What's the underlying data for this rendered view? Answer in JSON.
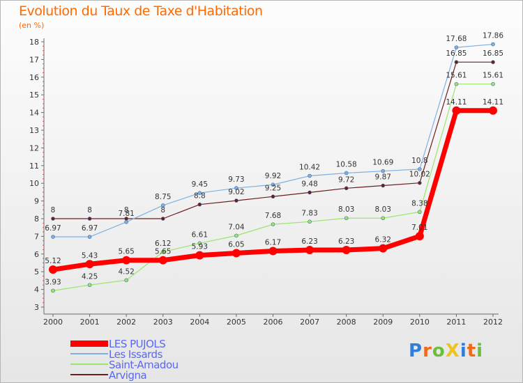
{
  "title": "Evolution du Taux de Taxe d'Habitation",
  "subtitle": "(en %)",
  "brand": {
    "text": "ProXiti",
    "colors": [
      "#2f7fd8",
      "#f06a1b",
      "#6cbf3a",
      "#f0c419",
      "#2f7fd8",
      "#f06a1b",
      "#6cbf3a"
    ]
  },
  "chart_data": {
    "type": "line",
    "x": [
      "2000",
      "2001",
      "2002",
      "2003",
      "2004",
      "2005",
      "2006",
      "2007",
      "2008",
      "2009",
      "2010",
      "2011",
      "2012"
    ],
    "ylim": [
      3,
      18
    ],
    "yticks": [
      "3",
      "4",
      "5",
      "6",
      "7",
      "8",
      "9",
      "10",
      "11",
      "12",
      "13",
      "14",
      "15",
      "16",
      "17",
      "18"
    ],
    "grid": false,
    "legend_position": "bottom-left",
    "series": [
      {
        "name": "Arvigna",
        "color": "#6b1e1e",
        "width": 1.2,
        "marker": 5,
        "values": [
          8,
          8,
          8,
          8,
          8.8,
          9.02,
          9.25,
          9.48,
          9.72,
          9.87,
          10.02,
          16.85,
          16.85
        ],
        "labels": [
          "8",
          "8",
          "8",
          "8",
          "8.8",
          "9.02",
          "9.25",
          "9.48",
          "9.72",
          "9.87",
          "10.02",
          "16.85",
          "16.85"
        ]
      },
      {
        "name": "Saint-Amadou",
        "color": "#99e66b",
        "width": 1.2,
        "marker": 5,
        "values": [
          3.93,
          4.25,
          4.52,
          6.12,
          6.61,
          7.04,
          7.68,
          7.83,
          8.03,
          8.03,
          8.38,
          15.61,
          15.61
        ],
        "labels": [
          "3.93",
          "4.25",
          "4.52",
          "6.12",
          "6.61",
          "7.04",
          "7.68",
          "7.83",
          "8.03",
          "8.03",
          "8.38",
          "15.61",
          "15.61"
        ]
      },
      {
        "name": "Les Issards",
        "color": "#7fb0e0",
        "width": 1.2,
        "marker": 5,
        "values": [
          6.97,
          6.97,
          7.81,
          8.75,
          9.45,
          9.73,
          9.92,
          10.42,
          10.58,
          10.69,
          10.8,
          17.68,
          17.86
        ],
        "labels": [
          "6.97",
          "6.97",
          "7.81",
          "8.75",
          "9.45",
          "9.73",
          "9.92",
          "10.42",
          "10.58",
          "10.69",
          "10.8",
          "17.68",
          "17.86"
        ]
      },
      {
        "name": "LES PUJOLS",
        "color": "#ff0000",
        "width": 7,
        "marker": 12,
        "values": [
          5.12,
          5.43,
          5.65,
          5.65,
          5.93,
          6.05,
          6.17,
          6.23,
          6.23,
          6.32,
          7.01,
          14.11,
          14.11
        ],
        "labels": [
          "5.12",
          "5.43",
          "5.65",
          "5.65",
          "5.93",
          "6.05",
          "6.17",
          "6.23",
          "6.23",
          "6.32",
          "7.01",
          "14.11",
          "14.11"
        ]
      }
    ],
    "legend": [
      {
        "name": "LES PUJOLS",
        "color": "#ff0000",
        "width": 9
      },
      {
        "name": "Les Issards",
        "color": "#7fb0e0",
        "width": 2
      },
      {
        "name": "Saint-Amadou",
        "color": "#99e66b",
        "width": 2
      },
      {
        "name": "Arvigna",
        "color": "#6b1e1e",
        "width": 2
      }
    ]
  }
}
